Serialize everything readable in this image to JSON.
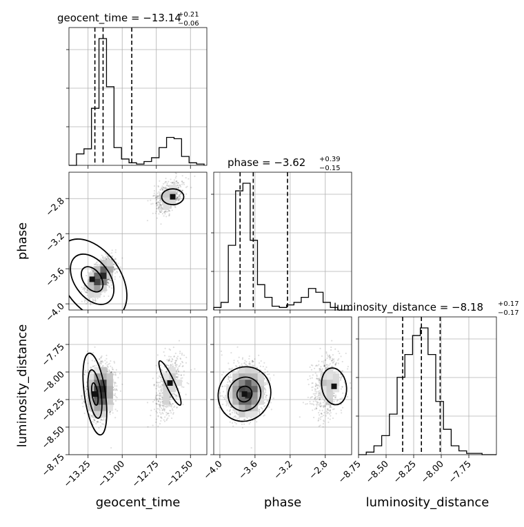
{
  "chart_data": {
    "type": "corner",
    "parameters": [
      "geocent_time",
      "phase",
      "luminosity_distance"
    ],
    "axis_labels": {
      "geocent_time": "geocent_time",
      "phase": "phase",
      "luminosity_distance": "luminosity_distance"
    },
    "titles": [
      {
        "param": "geocent_time",
        "text": "geocent_time = −13.14",
        "plus": "+0.21",
        "minus": "−0.06"
      },
      {
        "param": "phase",
        "text": "phase = −3.62",
        "plus": "+0.39",
        "minus": "−0.15"
      },
      {
        "param": "luminosity_distance",
        "text": "luminosity_distance = −8.18",
        "plus": "+0.17",
        "minus": "−0.17"
      }
    ],
    "ranges": {
      "geocent_time": [
        -13.39,
        -12.38
      ],
      "phase": [
        -4.07,
        -2.5
      ],
      "luminosity_distance": [
        -8.75,
        -7.5
      ]
    },
    "ticks": {
      "geocent_time": [
        -13.25,
        -13.0,
        -12.75,
        -12.5
      ],
      "phase": [
        -4.0,
        -3.6,
        -3.2,
        -2.8
      ],
      "luminosity_distance": [
        -8.75,
        -8.5,
        -8.25,
        -8.0,
        -7.75
      ]
    },
    "tick_labels": {
      "geocent_time": [
        "−13.25",
        "−13.00",
        "−12.75",
        "−12.50"
      ],
      "phase": [
        "−4.0",
        "−3.6",
        "−3.2",
        "−2.8"
      ],
      "luminosity_distance": [
        "−8.75",
        "−8.50",
        "−8.25",
        "−8.00",
        "−7.75"
      ]
    },
    "quantiles": {
      "geocent_time": [
        -13.2,
        -13.14,
        -12.93
      ],
      "phase": [
        -3.77,
        -3.62,
        -3.23
      ],
      "luminosity_distance": [
        -8.35,
        -8.18,
        -8.01
      ]
    },
    "histograms": {
      "geocent_time": {
        "edges": [
          -13.39,
          -13.335,
          -13.28,
          -13.225,
          -13.17,
          -13.115,
          -13.06,
          -13.005,
          -12.95,
          -12.895,
          -12.84,
          -12.785,
          -12.73,
          -12.675,
          -12.62,
          -12.565,
          -12.51,
          -12.455,
          -12.4
        ],
        "counts": [
          0,
          0.09,
          0.13,
          0.45,
          1.0,
          0.62,
          0.14,
          0.05,
          0.02,
          0.01,
          0.03,
          0.06,
          0.14,
          0.22,
          0.21,
          0.07,
          0.02,
          0.01
        ]
      },
      "phase": {
        "edges": [
          -4.07,
          -3.987,
          -3.904,
          -3.821,
          -3.738,
          -3.655,
          -3.572,
          -3.489,
          -3.406,
          -3.323,
          -3.24,
          -3.157,
          -3.074,
          -2.991,
          -2.908,
          -2.825,
          -2.742,
          -2.659,
          -2.576,
          -2.5
        ],
        "counts": [
          0.02,
          0.06,
          0.51,
          0.94,
          1.0,
          0.55,
          0.2,
          0.1,
          0.03,
          0.02,
          0.04,
          0.06,
          0.1,
          0.17,
          0.14,
          0.06,
          0.02,
          0.0,
          0.0
        ]
      },
      "luminosity_distance": {
        "edges": [
          -8.75,
          -8.68,
          -8.61,
          -8.54,
          -8.47,
          -8.4,
          -8.33,
          -8.26,
          -8.19,
          -8.12,
          -8.05,
          -7.98,
          -7.91,
          -7.84,
          -7.77,
          -7.7,
          -7.63,
          -7.56,
          -7.5
        ],
        "counts": [
          0.0,
          0.02,
          0.07,
          0.15,
          0.32,
          0.61,
          0.79,
          0.94,
          1.0,
          0.79,
          0.42,
          0.2,
          0.07,
          0.03,
          0.01,
          0.01,
          0.0,
          0.0
        ]
      }
    },
    "grid": true,
    "scatter": "dense gray sample points with 2D density histogram and 3 contour levels per pair"
  }
}
